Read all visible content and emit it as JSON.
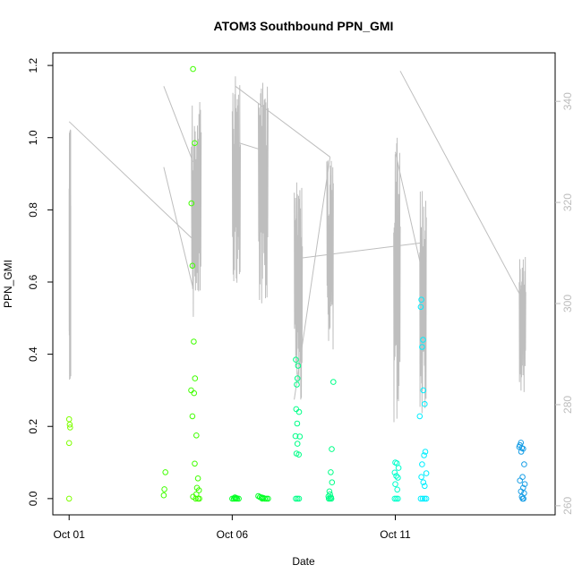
{
  "chart_data": {
    "type": "scatter",
    "title": "ATOM3 Southbound PPN_GMI",
    "xlabel": "Date",
    "ylabel": "PPN_GMI",
    "x_ticks": [
      {
        "day": 1,
        "label": "Oct 01"
      },
      {
        "day": 6,
        "label": "Oct 06"
      },
      {
        "day": 11,
        "label": "Oct 11"
      }
    ],
    "x_range_days": [
      0.5,
      15.9
    ],
    "y_left_ticks": [
      "0.0",
      "0.2",
      "0.4",
      "0.6",
      "0.8",
      "1.0",
      "1.2"
    ],
    "y_left_range": [
      -0.045,
      1.235
    ],
    "y_right_ticks": [
      "260",
      "280",
      "300",
      "320",
      "340"
    ],
    "y_right_range": [
      258.2,
      349.6
    ],
    "grid": false,
    "legend": "none",
    "colors": {
      "grey_line": "#bebebe",
      "axis": "#000000",
      "right_axis": "#bdbdbd"
    },
    "series": [
      {
        "color": "#7fff00",
        "points": [
          [
            1.0,
            0.22
          ],
          [
            1.02,
            0.205
          ],
          [
            1.03,
            0.197
          ],
          [
            1.0,
            0.154
          ],
          [
            1.0,
            0.0
          ]
        ]
      },
      {
        "color": "#40ff00",
        "points": [
          [
            3.95,
            0.073
          ],
          [
            3.92,
            0.026
          ],
          [
            3.9,
            0.009
          ],
          [
            4.8,
            1.19
          ],
          [
            4.85,
            0.985
          ],
          [
            4.75,
            0.818
          ],
          [
            4.78,
            0.645
          ],
          [
            4.82,
            0.435
          ],
          [
            4.86,
            0.333
          ],
          [
            4.74,
            0.3
          ],
          [
            4.83,
            0.292
          ],
          [
            4.78,
            0.228
          ],
          [
            4.9,
            0.175
          ],
          [
            4.85,
            0.097
          ],
          [
            4.95,
            0.056
          ],
          [
            4.92,
            0.03
          ],
          [
            4.98,
            0.023
          ],
          [
            4.9,
            0.012
          ],
          [
            4.8,
            0.005
          ],
          [
            4.88,
            0.0
          ],
          [
            4.95,
            0.0
          ],
          [
            4.99,
            0.0
          ]
        ]
      },
      {
        "color": "#00ff22",
        "points": [
          [
            6.0,
            0.0
          ],
          [
            6.05,
            0.0
          ],
          [
            6.1,
            0.0
          ],
          [
            6.15,
            0.0
          ],
          [
            6.2,
            0.0
          ],
          [
            6.08,
            0.003
          ],
          [
            6.12,
            0.002
          ],
          [
            6.8,
            0.007
          ],
          [
            6.85,
            0.004
          ],
          [
            6.9,
            0.003
          ],
          [
            6.95,
            0.002
          ],
          [
            7.0,
            0.0
          ],
          [
            7.05,
            0.0
          ],
          [
            7.1,
            0.0
          ],
          [
            6.92,
            0.0
          ]
        ]
      },
      {
        "color": "#00ff88",
        "points": [
          [
            7.95,
            0.385
          ],
          [
            8.02,
            0.368
          ],
          [
            8.0,
            0.333
          ],
          [
            7.98,
            0.316
          ],
          [
            7.96,
            0.248
          ],
          [
            8.05,
            0.24
          ],
          [
            7.99,
            0.208
          ],
          [
            7.94,
            0.173
          ],
          [
            8.07,
            0.172
          ],
          [
            8.0,
            0.152
          ],
          [
            7.97,
            0.125
          ],
          [
            8.04,
            0.122
          ],
          [
            7.95,
            0.0
          ],
          [
            8.0,
            0.0
          ],
          [
            8.05,
            0.0
          ],
          [
            9.1,
            0.323
          ],
          [
            9.05,
            0.137
          ],
          [
            9.02,
            0.073
          ],
          [
            9.06,
            0.045
          ],
          [
            8.98,
            0.02
          ],
          [
            9.0,
            0.012
          ],
          [
            8.95,
            0.006
          ],
          [
            9.03,
            0.003
          ],
          [
            8.96,
            0.0
          ],
          [
            9.0,
            0.0
          ],
          [
            9.04,
            0.0
          ]
        ]
      },
      {
        "color": "#00ffcc",
        "points": [
          [
            11.0,
            0.1
          ],
          [
            11.05,
            0.098
          ],
          [
            11.1,
            0.085
          ],
          [
            10.98,
            0.072
          ],
          [
            11.03,
            0.063
          ],
          [
            11.08,
            0.058
          ],
          [
            11.0,
            0.04
          ],
          [
            11.06,
            0.025
          ],
          [
            10.98,
            0.0
          ],
          [
            11.03,
            0.0
          ],
          [
            11.08,
            0.0
          ]
        ]
      },
      {
        "color": "#00eeff",
        "points": [
          [
            11.8,
            0.551
          ],
          [
            11.78,
            0.531
          ],
          [
            11.85,
            0.44
          ],
          [
            11.82,
            0.42
          ],
          [
            11.86,
            0.3
          ],
          [
            11.9,
            0.262
          ],
          [
            11.75,
            0.228
          ],
          [
            11.92,
            0.13
          ],
          [
            11.88,
            0.12
          ],
          [
            11.82,
            0.095
          ],
          [
            11.95,
            0.07
          ],
          [
            11.8,
            0.06
          ],
          [
            11.86,
            0.045
          ],
          [
            11.9,
            0.035
          ],
          [
            11.78,
            0.0
          ],
          [
            11.84,
            0.0
          ],
          [
            11.9,
            0.0
          ],
          [
            11.95,
            0.0
          ]
        ]
      },
      {
        "color": "#1a9fe6",
        "points": [
          [
            14.85,
            0.155
          ],
          [
            14.82,
            0.148
          ],
          [
            14.88,
            0.14
          ],
          [
            14.92,
            0.138
          ],
          [
            14.8,
            0.143
          ],
          [
            14.86,
            0.13
          ],
          [
            14.95,
            0.095
          ],
          [
            14.9,
            0.06
          ],
          [
            14.82,
            0.05
          ],
          [
            14.97,
            0.04
          ],
          [
            14.92,
            0.03
          ],
          [
            14.85,
            0.02
          ],
          [
            14.95,
            0.015
          ],
          [
            14.88,
            0.005
          ],
          [
            14.9,
            0.0
          ],
          [
            14.93,
            0.0
          ]
        ]
      }
    ],
    "secondary_line": {
      "color": "#bebebe",
      "axis": "right",
      "bursts": [
        {
          "start": 1.0,
          "end": 1.05,
          "lo": 284,
          "hi": 336
        },
        {
          "start": 4.75,
          "end": 5.05,
          "lo": 297,
          "hi": 340
        },
        {
          "start": 6.0,
          "end": 6.25,
          "lo": 302,
          "hi": 345
        },
        {
          "start": 6.8,
          "end": 7.1,
          "lo": 299,
          "hi": 345
        },
        {
          "start": 7.9,
          "end": 8.15,
          "lo": 281,
          "hi": 325
        },
        {
          "start": 8.9,
          "end": 9.1,
          "lo": 290,
          "hi": 329
        },
        {
          "start": 10.95,
          "end": 11.15,
          "lo": 275,
          "hi": 333
        },
        {
          "start": 11.75,
          "end": 11.95,
          "lo": 277,
          "hi": 323
        },
        {
          "start": 14.8,
          "end": 15.0,
          "lo": 282,
          "hi": 311
        }
      ],
      "links": [
        [
          [
            1.0,
            336
          ],
          [
            4.75,
            313
          ]
        ],
        [
          [
            3.9,
            343
          ],
          [
            4.8,
            328
          ]
        ],
        [
          [
            3.9,
            327
          ],
          [
            4.8,
            303
          ]
        ],
        [
          [
            6.1,
            343
          ],
          [
            9.0,
            329
          ]
        ],
        [
          [
            6.1,
            332
          ],
          [
            7.1,
            330
          ]
        ],
        [
          [
            7.9,
            281
          ],
          [
            9.0,
            329
          ]
        ],
        [
          [
            8.1,
            309
          ],
          [
            11.8,
            312
          ]
        ],
        [
          [
            11.15,
            346
          ],
          [
            14.8,
            302
          ]
        ],
        [
          [
            11.0,
            330
          ],
          [
            11.8,
            307
          ]
        ]
      ]
    }
  }
}
